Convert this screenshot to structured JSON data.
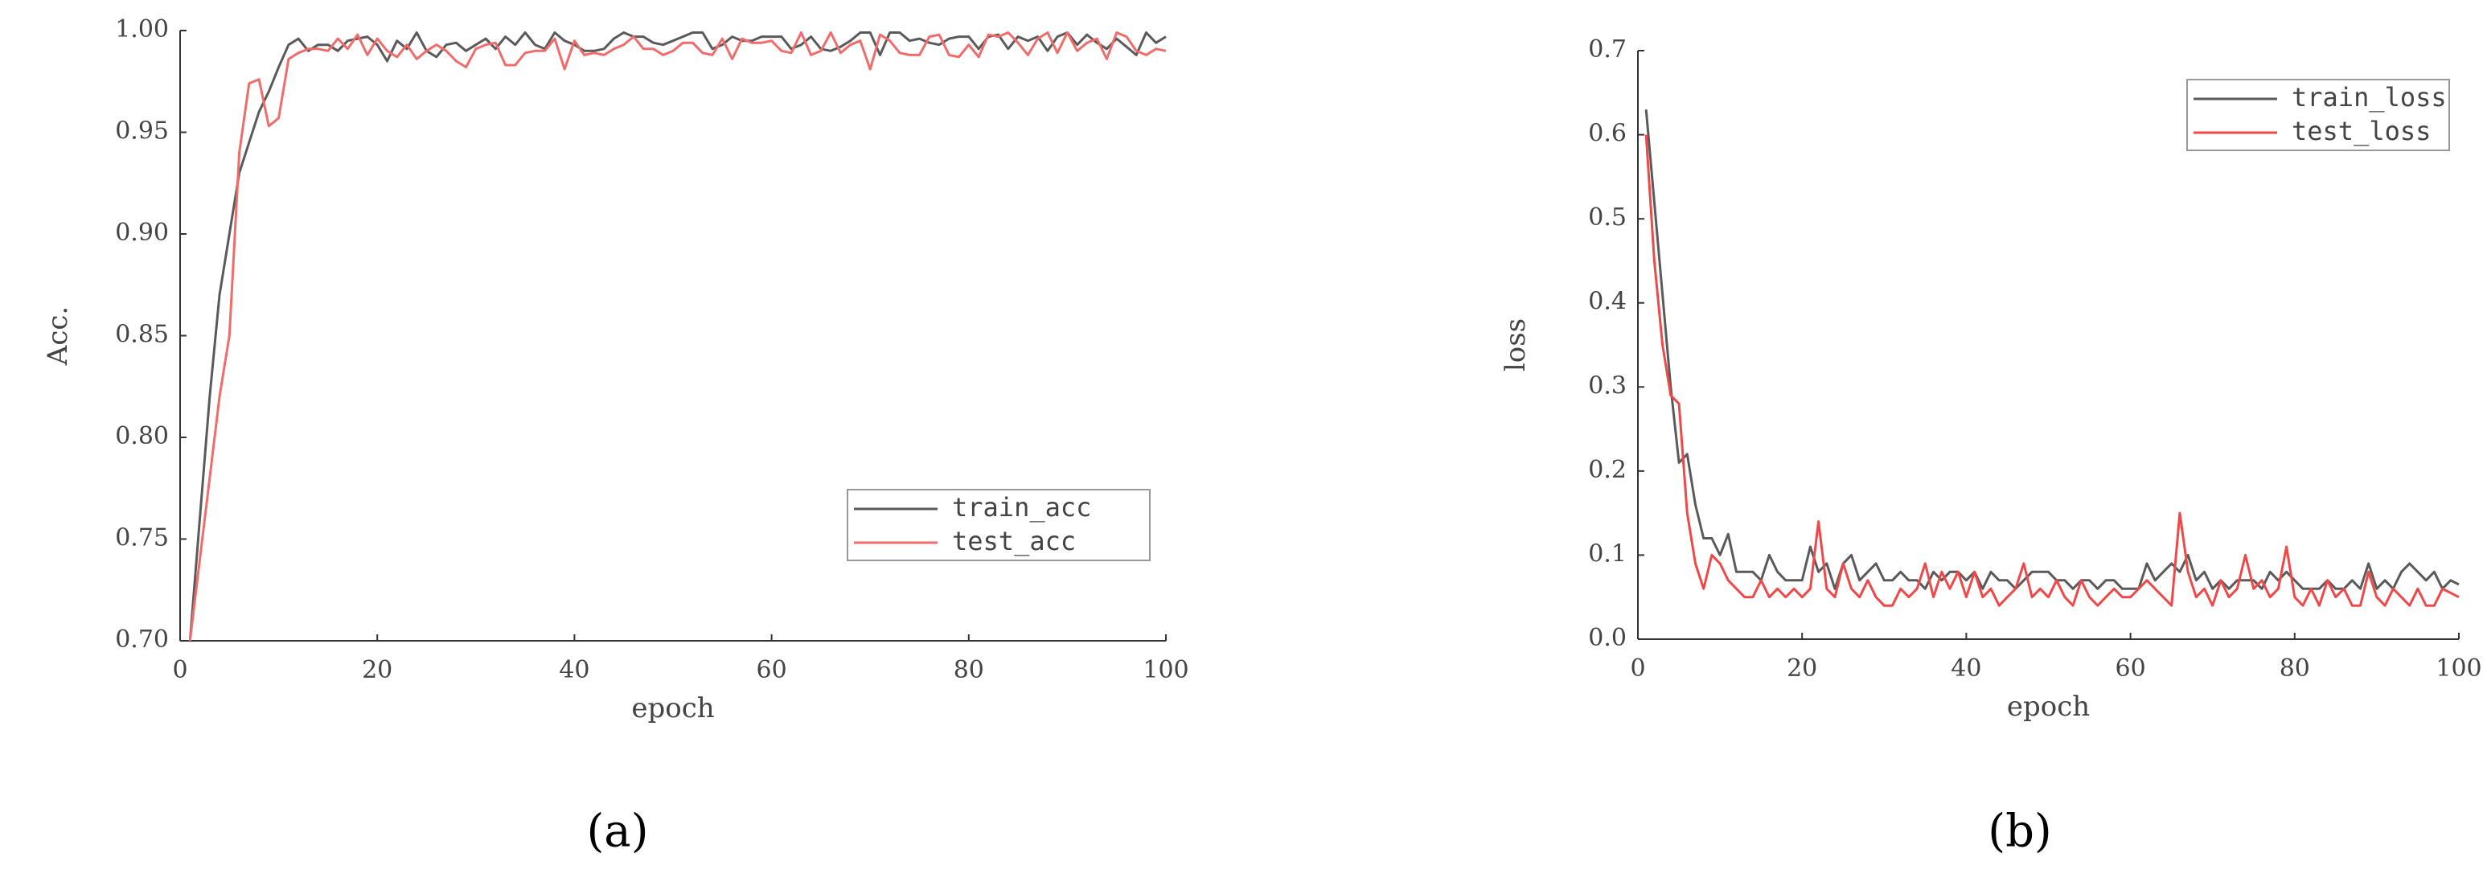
{
  "chart_data": [
    {
      "type": "line",
      "label": "(a)",
      "xlabel": "epoch",
      "ylabel": "Acc.",
      "x": [
        1,
        2,
        3,
        4,
        5,
        6,
        7,
        8,
        9,
        10,
        11,
        12,
        13,
        14,
        15,
        16,
        17,
        18,
        19,
        20,
        21,
        22,
        23,
        24,
        25,
        26,
        27,
        28,
        29,
        30,
        31,
        32,
        33,
        34,
        35,
        36,
        37,
        38,
        39,
        40,
        41,
        42,
        43,
        44,
        45,
        46,
        47,
        48,
        49,
        50,
        51,
        52,
        53,
        54,
        55,
        56,
        57,
        58,
        59,
        60,
        61,
        62,
        63,
        64,
        65,
        66,
        67,
        68,
        69,
        70,
        71,
        72,
        73,
        74,
        75,
        76,
        77,
        78,
        79,
        80,
        81,
        82,
        83,
        84,
        85,
        86,
        87,
        88,
        89,
        90,
        91,
        92,
        93,
        94,
        95,
        96,
        97,
        98,
        99,
        100
      ],
      "series": [
        {
          "name": "train_acc",
          "color": "#5a5a5a",
          "values": [
            0.7,
            0.76,
            0.82,
            0.87,
            0.9,
            0.93,
            0.945,
            0.96,
            0.97,
            0.982,
            0.993,
            0.996,
            0.99,
            0.993,
            0.993,
            0.99,
            0.995,
            0.996,
            0.997,
            0.993,
            0.985,
            0.995,
            0.991,
            0.999,
            0.99,
            0.987,
            0.993,
            0.994,
            0.99,
            0.993,
            0.996,
            0.991,
            0.997,
            0.993,
            0.999,
            0.993,
            0.991,
            0.999,
            0.995,
            0.993,
            0.99,
            0.99,
            0.991,
            0.996,
            0.999,
            0.997,
            0.997,
            0.994,
            0.993,
            0.995,
            0.997,
            0.999,
            0.999,
            0.991,
            0.993,
            0.997,
            0.995,
            0.995,
            0.997,
            0.997,
            0.997,
            0.991,
            0.993,
            0.997,
            0.991,
            0.99,
            0.992,
            0.995,
            0.999,
            0.999,
            0.988,
            0.999,
            0.999,
            0.995,
            0.996,
            0.994,
            0.993,
            0.996,
            0.997,
            0.997,
            0.991,
            0.997,
            0.998,
            0.991,
            0.997,
            0.995,
            0.997,
            0.99,
            0.997,
            0.999,
            0.993,
            0.998,
            0.994,
            0.991,
            0.996,
            0.992,
            0.988,
            0.999,
            0.994,
            0.997
          ]
        },
        {
          "name": "test_acc",
          "color": "#f26b6b",
          "values": [
            0.7,
            0.74,
            0.78,
            0.82,
            0.85,
            0.94,
            0.974,
            0.976,
            0.953,
            0.957,
            0.986,
            0.989,
            0.991,
            0.991,
            0.99,
            0.996,
            0.991,
            0.998,
            0.988,
            0.996,
            0.99,
            0.987,
            0.993,
            0.986,
            0.99,
            0.993,
            0.99,
            0.985,
            0.982,
            0.991,
            0.993,
            0.994,
            0.983,
            0.983,
            0.989,
            0.99,
            0.99,
            0.996,
            0.981,
            0.995,
            0.988,
            0.989,
            0.988,
            0.991,
            0.993,
            0.997,
            0.991,
            0.991,
            0.988,
            0.99,
            0.994,
            0.994,
            0.989,
            0.988,
            0.996,
            0.986,
            0.996,
            0.994,
            0.994,
            0.995,
            0.99,
            0.989,
            0.999,
            0.988,
            0.99,
            0.999,
            0.989,
            0.993,
            0.995,
            0.981,
            0.998,
            0.995,
            0.989,
            0.988,
            0.988,
            0.997,
            0.998,
            0.988,
            0.987,
            0.993,
            0.987,
            0.998,
            0.997,
            0.999,
            0.994,
            0.988,
            0.996,
            0.999,
            0.989,
            0.999,
            0.99,
            0.994,
            0.996,
            0.986,
            0.999,
            0.997,
            0.99,
            0.988,
            0.991,
            0.99
          ]
        }
      ],
      "xlim": [
        0,
        100
      ],
      "xticks": [
        0,
        20,
        40,
        60,
        80,
        100
      ],
      "ylim": [
        0.7,
        1.0
      ],
      "yticks": [
        {
          "value": 0.7,
          "label": "0.70"
        },
        0.75,
        {
          "value": 0.8,
          "label": "0.80"
        },
        0.85,
        {
          "value": 0.9,
          "label": "0.90"
        },
        0.95,
        {
          "value": 1.0,
          "label": "1.00"
        }
      ],
      "legend": "lower right"
    },
    {
      "type": "line",
      "label": "(b)",
      "xlabel": "epoch",
      "ylabel": "loss",
      "x": [
        1,
        2,
        3,
        4,
        5,
        6,
        7,
        8,
        9,
        10,
        11,
        12,
        13,
        14,
        15,
        16,
        17,
        18,
        19,
        20,
        21,
        22,
        23,
        24,
        25,
        26,
        27,
        28,
        29,
        30,
        31,
        32,
        33,
        34,
        35,
        36,
        37,
        38,
        39,
        40,
        41,
        42,
        43,
        44,
        45,
        46,
        47,
        48,
        49,
        50,
        51,
        52,
        53,
        54,
        55,
        56,
        57,
        58,
        59,
        60,
        61,
        62,
        63,
        64,
        65,
        66,
        67,
        68,
        69,
        70,
        71,
        72,
        73,
        74,
        75,
        76,
        77,
        78,
        79,
        80,
        81,
        82,
        83,
        84,
        85,
        86,
        87,
        88,
        89,
        90,
        91,
        92,
        93,
        94,
        95,
        96,
        97,
        98,
        99,
        100
      ],
      "series": [
        {
          "name": "train_loss",
          "color": "#5a5a5a",
          "values": [
            0.63,
            0.52,
            0.41,
            0.3,
            0.21,
            0.22,
            0.16,
            0.12,
            0.12,
            0.1,
            0.125,
            0.08,
            0.08,
            0.08,
            0.07,
            0.1,
            0.08,
            0.07,
            0.07,
            0.07,
            0.11,
            0.08,
            0.09,
            0.06,
            0.09,
            0.1,
            0.07,
            0.08,
            0.09,
            0.07,
            0.07,
            0.08,
            0.07,
            0.07,
            0.06,
            0.08,
            0.07,
            0.08,
            0.08,
            0.07,
            0.08,
            0.06,
            0.08,
            0.07,
            0.07,
            0.06,
            0.07,
            0.08,
            0.08,
            0.08,
            0.07,
            0.07,
            0.06,
            0.07,
            0.07,
            0.06,
            0.07,
            0.07,
            0.06,
            0.06,
            0.06,
            0.09,
            0.07,
            0.08,
            0.09,
            0.08,
            0.1,
            0.07,
            0.08,
            0.06,
            0.07,
            0.06,
            0.07,
            0.07,
            0.07,
            0.06,
            0.08,
            0.07,
            0.08,
            0.07,
            0.06,
            0.06,
            0.06,
            0.07,
            0.06,
            0.06,
            0.07,
            0.06,
            0.09,
            0.06,
            0.07,
            0.06,
            0.08,
            0.09,
            0.08,
            0.07,
            0.08,
            0.06,
            0.07,
            0.065
          ]
        },
        {
          "name": "test_loss",
          "color": "#f04848",
          "values": [
            0.6,
            0.45,
            0.35,
            0.29,
            0.28,
            0.15,
            0.09,
            0.06,
            0.1,
            0.09,
            0.07,
            0.06,
            0.05,
            0.05,
            0.07,
            0.05,
            0.06,
            0.05,
            0.06,
            0.05,
            0.06,
            0.14,
            0.06,
            0.05,
            0.09,
            0.06,
            0.05,
            0.07,
            0.05,
            0.04,
            0.04,
            0.06,
            0.05,
            0.06,
            0.09,
            0.05,
            0.08,
            0.06,
            0.08,
            0.05,
            0.08,
            0.05,
            0.06,
            0.04,
            0.05,
            0.06,
            0.09,
            0.05,
            0.06,
            0.05,
            0.07,
            0.05,
            0.04,
            0.07,
            0.05,
            0.04,
            0.05,
            0.06,
            0.05,
            0.05,
            0.06,
            0.07,
            0.06,
            0.05,
            0.04,
            0.15,
            0.08,
            0.05,
            0.06,
            0.04,
            0.07,
            0.05,
            0.06,
            0.1,
            0.06,
            0.07,
            0.05,
            0.06,
            0.11,
            0.05,
            0.04,
            0.06,
            0.04,
            0.07,
            0.05,
            0.06,
            0.04,
            0.04,
            0.08,
            0.05,
            0.04,
            0.06,
            0.05,
            0.04,
            0.06,
            0.04,
            0.04,
            0.06,
            0.055,
            0.05
          ]
        }
      ],
      "xlim": [
        0,
        100
      ],
      "xticks": [
        0,
        20,
        40,
        60,
        80,
        100
      ],
      "ylim": [
        0,
        0.7
      ],
      "yticks": [
        {
          "value": 0,
          "label": "0.0"
        },
        0.1,
        0.2,
        0.3,
        0.4,
        0.5,
        0.6,
        0.7
      ],
      "legend": "upper right"
    }
  ]
}
